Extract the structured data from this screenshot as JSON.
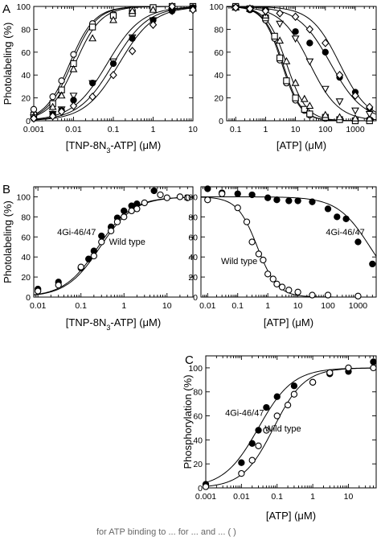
{
  "figure": {
    "footer_fragment": "for ATP binding to  ...  for  ...  and  ... (  )"
  },
  "chart_data": [
    {
      "id": "A-left",
      "panel_label": "A",
      "type": "scatter",
      "xscale": "log",
      "xlim": [
        0.001,
        10
      ],
      "ylim": [
        0,
        100
      ],
      "xticks": [
        "0.001",
        "0.01",
        "0.1",
        "1",
        "10"
      ],
      "yticks": [
        "0",
        "20",
        "40",
        "60",
        "80",
        "100"
      ],
      "xlabel": "[TNP-8N3-ATP] (μM)",
      "ylabel": "Photolabeling (%)",
      "grid": false,
      "series": [
        {
          "marker": "circle-open",
          "x": [
            0.001,
            0.003,
            0.005,
            0.01,
            0.03,
            0.1,
            0.3,
            1,
            3,
            10
          ],
          "y": [
            10,
            21,
            35,
            58,
            85,
            93,
            97,
            98,
            100,
            99
          ],
          "fit_ec50": 0.008,
          "fit_hill": 1.4
        },
        {
          "marker": "square-open",
          "x": [
            0.001,
            0.003,
            0.005,
            0.01,
            0.03,
            0.1,
            0.3,
            1,
            3,
            10
          ],
          "y": [
            5,
            15,
            27,
            50,
            82,
            92,
            94,
            99,
            100,
            100
          ],
          "fit_ec50": 0.009,
          "fit_hill": 1.4
        },
        {
          "marker": "triangle-up-open",
          "x": [
            0.001,
            0.003,
            0.005,
            0.01,
            0.03,
            0.1,
            0.3,
            1,
            3,
            10
          ],
          "y": [
            4,
            12,
            22,
            45,
            72,
            88,
            96,
            97,
            99,
            98
          ],
          "fit_ec50": 0.011,
          "fit_hill": 1.35
        },
        {
          "marker": "triangle-down-open",
          "x": [
            0.001,
            0.003,
            0.005,
            0.01,
            0.03,
            0.1,
            0.3,
            1,
            3,
            10
          ],
          "y": [
            3,
            6,
            10,
            22,
            33,
            52,
            73,
            88,
            96,
            98
          ],
          "fit_ec50": 0.07,
          "fit_hill": 1.0
        },
        {
          "marker": "circle-filled",
          "x": [
            0.001,
            0.003,
            0.005,
            0.01,
            0.03,
            0.1,
            0.3,
            1,
            3,
            10
          ],
          "y": [
            2,
            6,
            9,
            18,
            33,
            50,
            72,
            88,
            96,
            99
          ],
          "fit_ec50": 0.1,
          "fit_hill": 1.0
        },
        {
          "marker": "diamond-open",
          "x": [
            0.001,
            0.003,
            0.005,
            0.01,
            0.03,
            0.1,
            0.3,
            1,
            3,
            10
          ],
          "y": [
            2,
            4,
            8,
            13,
            21,
            40,
            61,
            84,
            102,
            97
          ],
          "fit_ec50": 0.14,
          "fit_hill": 1.0
        }
      ]
    },
    {
      "id": "A-right",
      "type": "scatter",
      "xscale": "log",
      "xlim": [
        0.05,
        5000
      ],
      "ylim": [
        0,
        100
      ],
      "xticks": [
        "0.1",
        "1",
        "10",
        "100",
        "1000"
      ],
      "yticks": [
        "0",
        "20",
        "40",
        "60",
        "80",
        "100"
      ],
      "xlabel": "[ATP] (μM)",
      "ylabel": "",
      "grid": false,
      "series": [
        {
          "marker": "circle-open",
          "x": [
            0.1,
            0.3,
            1,
            2,
            3,
            5,
            10,
            20,
            30,
            100,
            300,
            1000,
            3000
          ],
          "y": [
            99,
            97,
            88,
            72,
            53,
            33,
            18,
            9,
            5,
            2,
            1,
            0,
            1
          ],
          "fit_ec50": 3.5,
          "fit_hill": 1.4
        },
        {
          "marker": "square-open",
          "x": [
            0.1,
            0.3,
            1,
            2,
            3,
            5,
            10,
            20,
            30,
            100,
            300,
            1000,
            3000
          ],
          "y": [
            100,
            98,
            90,
            74,
            55,
            35,
            20,
            10,
            6,
            3,
            1,
            0,
            0
          ],
          "fit_ec50": 3.8,
          "fit_hill": 1.4
        },
        {
          "marker": "triangle-up-open",
          "x": [
            0.1,
            0.3,
            1,
            3,
            5,
            10,
            20,
            30,
            100,
            300,
            1000,
            3000
          ],
          "y": [
            99,
            98,
            92,
            70,
            52,
            33,
            19,
            13,
            5,
            3,
            2,
            2
          ],
          "fit_ec50": 5.0,
          "fit_hill": 1.3
        },
        {
          "marker": "triangle-down-open",
          "x": [
            0.1,
            0.3,
            1,
            3,
            10,
            30,
            100,
            300,
            1000,
            3000
          ],
          "y": [
            99,
            98,
            95,
            85,
            72,
            52,
            28,
            17,
            9,
            6
          ],
          "fit_ec50": 30,
          "fit_hill": 0.9
        },
        {
          "marker": "circle-filled",
          "x": [
            0.1,
            1,
            10,
            30,
            100,
            300,
            1000,
            3000
          ],
          "y": [
            99,
            97,
            78,
            68,
            60,
            38,
            25,
            11
          ],
          "fit_ec50": 150,
          "fit_hill": 0.8
        },
        {
          "marker": "diamond-open",
          "x": [
            0.1,
            0.3,
            1,
            3,
            10,
            30,
            100,
            300,
            1000,
            3000
          ],
          "y": [
            99,
            98,
            96,
            94,
            91,
            80,
            68,
            40,
            22,
            12
          ],
          "fit_ec50": 300,
          "fit_hill": 0.9
        }
      ]
    },
    {
      "id": "B-left",
      "panel_label": "B",
      "type": "scatter",
      "xscale": "log",
      "xlim": [
        0.008,
        40
      ],
      "ylim": [
        0,
        110
      ],
      "xticks": [
        "0.01",
        "0.1",
        "1",
        "10"
      ],
      "yticks": [
        "0",
        "20",
        "40",
        "60",
        "80",
        "100"
      ],
      "xlabel": "[TNP-8N3-ATP] (μM)",
      "ylabel": "Photolabeling (%)",
      "grid": false,
      "annotations": [
        {
          "text": "4Gi-46/47",
          "at_x": 0.028,
          "at_y": 62
        },
        {
          "text": "Wild type",
          "at_x": 0.45,
          "at_y": 52
        }
      ],
      "series": [
        {
          "name": "4Gi-46/47",
          "marker": "circle-filled",
          "x": [
            0.01,
            0.03,
            0.1,
            0.15,
            0.2,
            0.3,
            0.5,
            0.7,
            1,
            1.5,
            2,
            5
          ],
          "y": [
            8,
            15,
            29,
            38,
            46,
            61,
            70,
            79,
            86,
            91,
            93,
            106
          ],
          "fit_ec50": 0.25,
          "fit_hill": 1.1
        },
        {
          "name": "Wild type",
          "marker": "circle-open",
          "x": [
            0.01,
            0.03,
            0.1,
            0.2,
            0.3,
            0.5,
            0.7,
            1,
            1.5,
            2,
            3,
            7,
            10,
            20,
            30
          ],
          "y": [
            6,
            12,
            30,
            41,
            55,
            66,
            75,
            80,
            86,
            88,
            94,
            102,
            99,
            100,
            99
          ],
          "fit_ec50": 0.28,
          "fit_hill": 1.1
        }
      ]
    },
    {
      "id": "B-right",
      "type": "scatter",
      "xscale": "log",
      "xlim": [
        0.006,
        4000
      ],
      "ylim": [
        0,
        110
      ],
      "xticks": [
        "0.01",
        "0.1",
        "1",
        "10",
        "100",
        "1000"
      ],
      "yticks": [
        "0",
        "20",
        "40",
        "60",
        "80",
        "100"
      ],
      "xlabel": "[ATP] (μM)",
      "ylabel": "",
      "grid": false,
      "annotations": [
        {
          "text": "4Gi-46/47",
          "at_x": 85,
          "at_y": 62
        },
        {
          "text": "Wild type",
          "at_x": 0.028,
          "at_y": 33
        }
      ],
      "series": [
        {
          "name": "4Gi-46/47",
          "marker": "circle-filled",
          "x": [
            0.01,
            0.03,
            0.1,
            0.3,
            1,
            2,
            5,
            10,
            30,
            100,
            200,
            400,
            1000,
            3000
          ],
          "y": [
            108,
            104,
            103,
            102,
            99,
            97,
            96,
            96,
            95,
            88,
            80,
            78,
            55,
            33
          ],
          "fit_ec50": 2500,
          "fit_hill": 0.8
        },
        {
          "name": "Wild type",
          "marker": "circle-open",
          "x": [
            0.01,
            0.03,
            0.1,
            0.2,
            0.3,
            0.5,
            0.7,
            1,
            1.5,
            2,
            3,
            5,
            10,
            30,
            100,
            1000
          ],
          "y": [
            97,
            103,
            89,
            75,
            55,
            43,
            37,
            23,
            18,
            13,
            10,
            7,
            5,
            2,
            2,
            1
          ],
          "fit_ec50": 0.45,
          "fit_hill": 1.3
        }
      ]
    },
    {
      "id": "C",
      "panel_label": "C",
      "type": "scatter",
      "xscale": "log",
      "xlim": [
        0.001,
        60
      ],
      "ylim": [
        0,
        110
      ],
      "xticks": [
        "0.001",
        "0.01",
        "0.1",
        "1",
        "10"
      ],
      "yticks": [
        "0",
        "20",
        "40",
        "60",
        "80",
        "100"
      ],
      "xlabel": "[ATP] (μM)",
      "ylabel": "Phosphorylation (%)",
      "grid": false,
      "annotations": [
        {
          "text": "4Gi-46/47",
          "at_x": 0.0035,
          "at_y": 60
        },
        {
          "text": "Wild type",
          "at_x": 0.045,
          "at_y": 47
        }
      ],
      "series": [
        {
          "name": "4Gi-46/47",
          "marker": "circle-filled",
          "x": [
            0.001,
            0.01,
            0.02,
            0.03,
            0.05,
            0.1,
            0.3,
            1,
            3,
            10,
            50
          ],
          "y": [
            3,
            21,
            37,
            48,
            67,
            76,
            85,
            88,
            95,
            97,
            105
          ],
          "fit_ec50": 0.03,
          "fit_hill": 0.9
        },
        {
          "name": "Wild type",
          "marker": "circle-open",
          "x": [
            0.001,
            0.01,
            0.02,
            0.03,
            0.05,
            0.1,
            0.2,
            0.3,
            1,
            3,
            10,
            50
          ],
          "y": [
            1,
            12,
            23,
            35,
            48,
            60,
            69,
            78,
            88,
            96,
            100,
            100
          ],
          "fit_ec50": 0.08,
          "fit_hill": 1.0
        }
      ]
    }
  ]
}
